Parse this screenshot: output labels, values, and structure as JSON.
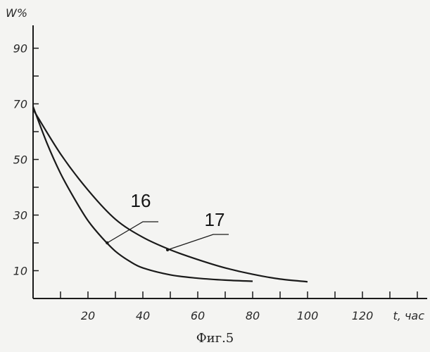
{
  "caption": "Фиг.5",
  "chart_data": {
    "type": "line",
    "title": "",
    "xlabel": "t, час",
    "ylabel": "W%",
    "xlim": [
      0,
      140
    ],
    "ylim": [
      0,
      100
    ],
    "grid": false,
    "x_ticks": [
      20,
      40,
      60,
      80,
      100,
      120
    ],
    "x_tick_labels": [
      "20",
      "40",
      "60",
      "80",
      "100",
      "120"
    ],
    "y_ticks": [
      10,
      30,
      50,
      70,
      90
    ],
    "y_tick_labels": [
      "10",
      "30",
      "50",
      "70",
      "90"
    ],
    "series": [
      {
        "name": "16",
        "color": "#1a1a1a",
        "x": [
          0,
          5,
          10,
          15,
          20,
          25,
          30,
          35,
          40,
          50,
          60,
          70,
          80
        ],
        "y": [
          69,
          56,
          45,
          36,
          28,
          22,
          17,
          13.5,
          11,
          8.5,
          7.3,
          6.6,
          6.2
        ]
      },
      {
        "name": "17",
        "color": "#1a1a1a",
        "x": [
          0,
          10,
          20,
          30,
          40,
          50,
          60,
          70,
          80,
          90,
          100
        ],
        "y": [
          68,
          52,
          39,
          28.5,
          22,
          17.5,
          14,
          11,
          8.7,
          7,
          6
        ]
      }
    ],
    "annotations": [
      {
        "label": "16",
        "series": "16",
        "point_x": 27,
        "point_y": 20
      },
      {
        "label": "17",
        "series": "17",
        "point_x": 49,
        "point_y": 17.5
      }
    ]
  }
}
